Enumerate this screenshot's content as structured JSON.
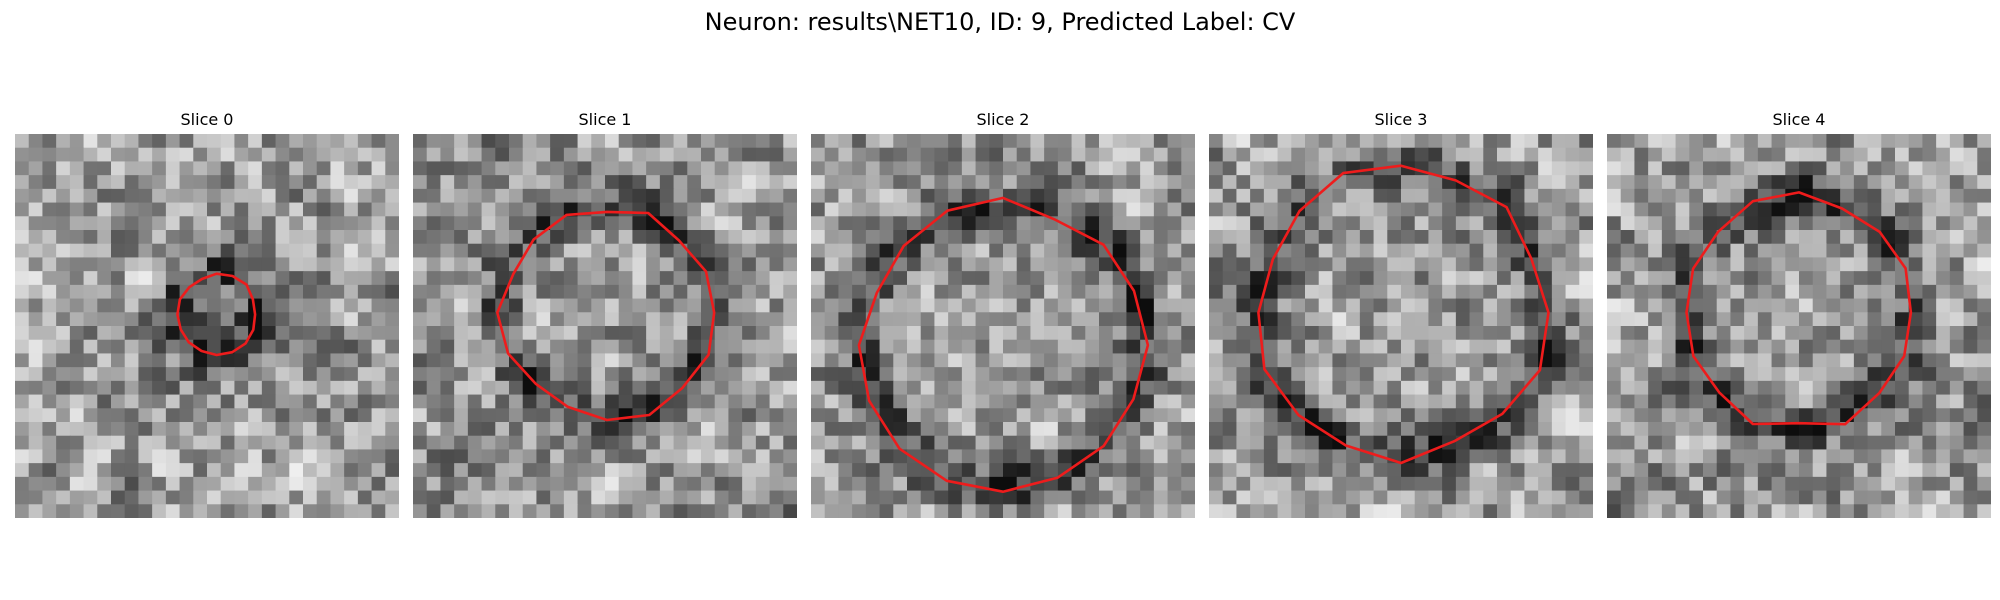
{
  "figure": {
    "title": "Neuron: results\\NET10, ID: 9, Predicted Label: CV",
    "contour_color": "#ee1c1c",
    "colormap": "gray",
    "grid_size": 28,
    "slices": [
      {
        "title": "Slice 0",
        "contour_center": [
          0.525,
          0.47
        ],
        "contour_radius": 0.105,
        "seed": 11
      },
      {
        "title": "Slice 1",
        "contour_center": [
          0.505,
          0.465
        ],
        "contour_radius": 0.275,
        "seed": 23
      },
      {
        "title": "Slice 2",
        "contour_center": [
          0.5,
          0.55
        ],
        "contour_radius": 0.37,
        "seed": 37
      },
      {
        "title": "Slice 3",
        "contour_center": [
          0.5,
          0.465
        ],
        "contour_radius": 0.375,
        "seed": 51
      },
      {
        "title": "Slice 4",
        "contour_center": [
          0.5,
          0.465
        ],
        "contour_radius": 0.3,
        "seed": 67
      }
    ]
  }
}
